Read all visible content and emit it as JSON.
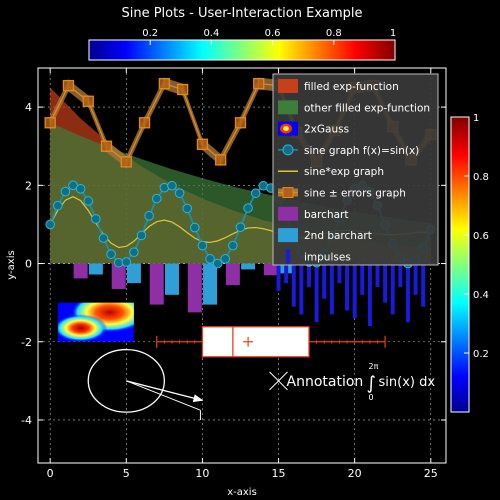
{
  "chart_data": {
    "type": "line",
    "title": "Sine Plots - User-Interaction Example",
    "xlabel": "x-axis",
    "ylabel": "y-axis",
    "xlim": [
      -0.8,
      26
    ],
    "ylim": [
      -5.1,
      5
    ],
    "x_ticks": [
      "0",
      "5",
      "10",
      "15",
      "20",
      "25"
    ],
    "y_ticks": [
      "-4",
      "-2",
      "0",
      "2",
      "4"
    ],
    "grid": true,
    "background": "#000000",
    "foreground": "#ffffff",
    "top_colorbar": {
      "ticks": [
        "0.2",
        "0.4",
        "0.6",
        "0.8",
        "1"
      ],
      "colormap": "jet"
    },
    "right_colorbar": {
      "ticks": [
        "0.2",
        "0.4",
        "0.6",
        "0.8",
        "1"
      ],
      "colormap": "jet"
    },
    "legend": {
      "placement": "top-right",
      "entries": [
        {
          "label": "filled exp-function",
          "kind": "fill",
          "color": "#c8401a"
        },
        {
          "label": "other filled exp-function",
          "kind": "fill",
          "color": "#3e7d3a"
        },
        {
          "label": "2xGauss",
          "kind": "image"
        },
        {
          "label": "sine graph f(x)=sin(x)",
          "kind": "line-marker",
          "color": "#1b8fa8"
        },
        {
          "label": "sine*exp graph",
          "kind": "line",
          "color": "#d9c93a"
        },
        {
          "label": "sine ± errors graph",
          "kind": "line-square",
          "color": "#e08a1e"
        },
        {
          "label": "barchart",
          "kind": "bar",
          "color": "#8e2fa6"
        },
        {
          "label": "2nd barchart",
          "kind": "bar",
          "color": "#2f9fd8"
        },
        {
          "label": "impulses",
          "kind": "impulse",
          "color": "#1a1adc"
        }
      ]
    },
    "series": [
      {
        "name": "filled exp-function",
        "type": "area",
        "color": "#c8401a",
        "x": [
          0,
          2,
          4,
          6,
          8,
          10,
          12,
          14,
          16,
          18,
          20,
          22,
          24,
          25
        ],
        "y": [
          4.5,
          3.71,
          3.03,
          2.48,
          2.03,
          1.66,
          1.36,
          1.11,
          0.91,
          0.74,
          0.61,
          0.5,
          0.41,
          0.37
        ]
      },
      {
        "name": "other filled exp-function",
        "type": "area",
        "color": "#3e7d3a",
        "x": [
          0,
          2,
          4,
          6,
          8,
          10,
          12,
          14,
          16,
          18,
          20,
          22,
          24,
          25
        ],
        "y": [
          3.6,
          3.26,
          2.95,
          2.67,
          2.41,
          2.18,
          1.97,
          1.79,
          1.62,
          1.46,
          1.32,
          1.2,
          1.08,
          1.03
        ]
      },
      {
        "name": "sine graph f(x)=sin(x)",
        "type": "line",
        "color": "#1b8fa8",
        "x": [
          0,
          0.5,
          1,
          1.5,
          2,
          2.5,
          3,
          3.5,
          4,
          4.5,
          5,
          5.5,
          6,
          6.5,
          7,
          7.5,
          8,
          8.5,
          9,
          9.5,
          10,
          10.5,
          11,
          11.5,
          12,
          12.5,
          13,
          13.5,
          14,
          14.5,
          15,
          15.5,
          16,
          16.5,
          17,
          17.5,
          18,
          18.5,
          19,
          19.5,
          20,
          20.5,
          21,
          21.5,
          22,
          22.5,
          23,
          23.5,
          24,
          24.5,
          25
        ],
        "y": [
          1.0,
          1.48,
          1.84,
          2.0,
          1.91,
          1.6,
          1.14,
          0.65,
          0.24,
          0.02,
          0.04,
          0.29,
          0.72,
          1.22,
          1.66,
          1.94,
          1.99,
          1.8,
          1.41,
          0.92,
          0.46,
          0.12,
          0.0,
          0.12,
          0.46,
          0.93,
          1.42,
          1.8,
          1.99,
          1.93,
          1.65,
          1.2,
          0.71,
          0.29,
          0.04,
          0.02,
          0.25,
          0.66,
          1.15,
          1.62,
          1.91,
          2.0,
          1.84,
          1.48,
          0.99,
          0.51,
          0.15,
          0.0,
          0.09,
          0.4,
          0.87
        ]
      },
      {
        "name": "sine*exp graph",
        "type": "line",
        "color": "#d9c93a",
        "x": [
          0,
          0.5,
          1,
          1.5,
          2,
          2.5,
          3,
          3.5,
          4,
          4.5,
          5,
          5.5,
          6,
          6.5,
          7,
          7.5,
          8,
          8.5,
          9,
          9.5,
          10,
          10.5,
          11,
          11.5,
          12,
          12.5,
          13,
          13.5,
          14,
          14.5,
          15,
          15.5,
          16,
          16.5,
          17,
          17.5,
          18,
          18.5,
          19,
          19.5,
          20,
          20.5,
          21,
          21.5,
          22,
          22.5,
          23,
          23.5,
          24,
          24.5,
          25
        ],
        "y": [
          1.0,
          1.36,
          1.62,
          1.71,
          1.61,
          1.36,
          1.04,
          0.74,
          0.52,
          0.41,
          0.44,
          0.57,
          0.76,
          0.95,
          1.07,
          1.11,
          1.06,
          0.94,
          0.79,
          0.65,
          0.56,
          0.54,
          0.58,
          0.66,
          0.76,
          0.85,
          0.91,
          0.92,
          0.89,
          0.84,
          0.77,
          0.71,
          0.67,
          0.66,
          0.68,
          0.72,
          0.77,
          0.82,
          0.84,
          0.85,
          0.84,
          0.82,
          0.78,
          0.76,
          0.74,
          0.74,
          0.75,
          0.77,
          0.79,
          0.8,
          0.8
        ]
      },
      {
        "name": "sine ± errors graph",
        "type": "line",
        "color": "#e08a1e",
        "error": 0.15,
        "x": [
          0,
          1.2,
          2.5,
          3.7,
          5,
          6.2,
          7.5,
          8.7,
          10,
          11.2,
          12.5,
          13.7,
          15,
          16.2,
          17.5,
          18.7,
          20,
          21.2,
          22.5,
          23.7,
          25
        ],
        "y": [
          3.6,
          4.55,
          4.15,
          3.0,
          2.6,
          3.6,
          4.6,
          4.45,
          3.05,
          2.65,
          3.6,
          4.6,
          4.55,
          3.35,
          2.6,
          3.4,
          4.5,
          4.55,
          3.5,
          2.65,
          3.3
        ]
      }
    ],
    "bars": [
      {
        "name": "barchart",
        "color": "#8e2fa6",
        "x": [
          2,
          4.5,
          7,
          9.5,
          12,
          14.5
        ],
        "values": [
          -0.38,
          -0.65,
          -1.05,
          -1.25,
          -0.55,
          -0.3
        ]
      },
      {
        "name": "2nd barchart",
        "color": "#2f9fd8",
        "x": [
          3,
          5.5,
          8,
          10.5,
          13,
          15.5
        ],
        "values": [
          -0.28,
          -0.5,
          -0.8,
          -1.05,
          -0.15,
          -0.25
        ]
      }
    ],
    "impulses": {
      "name": "impulses",
      "color": "#1a1adc",
      "x": [
        15.0,
        15.5,
        16.0,
        16.5,
        17.0,
        17.5,
        18.0,
        18.5,
        19.0,
        19.5,
        20.0,
        20.5,
        21.0,
        21.5,
        22.0,
        22.5,
        23.0,
        23.5,
        24.0,
        24.5
      ],
      "values": [
        -0.7,
        -0.5,
        -1.1,
        -1.3,
        -0.6,
        -1.5,
        -0.9,
        -1.3,
        -0.5,
        -1.2,
        -1.4,
        -0.8,
        -1.6,
        -0.6,
        -1.0,
        -1.3,
        -0.6,
        -1.5,
        -0.8,
        -1.1
      ]
    },
    "boxplot": {
      "y": -2,
      "min": 7,
      "q1": 10,
      "median": 12,
      "mean": 13,
      "q3": 17,
      "max": 22,
      "color": "#e8401a"
    },
    "image_2xgauss": {
      "x": [
        0.5,
        5.5
      ],
      "y": [
        -1.0,
        -2.0
      ]
    },
    "ellipse": {
      "cx": 5,
      "cy": -3,
      "rx": 2.5,
      "ry": 0.8
    },
    "arrow": {
      "from": [
        5,
        -3
      ],
      "to": [
        10,
        -3.5
      ]
    },
    "annotation": {
      "text_prefix": "Annotation",
      "integral_upper": "2π",
      "integral_lower": "0",
      "integral_body": "sin(x) dx",
      "x": 15,
      "y": -3
    }
  }
}
